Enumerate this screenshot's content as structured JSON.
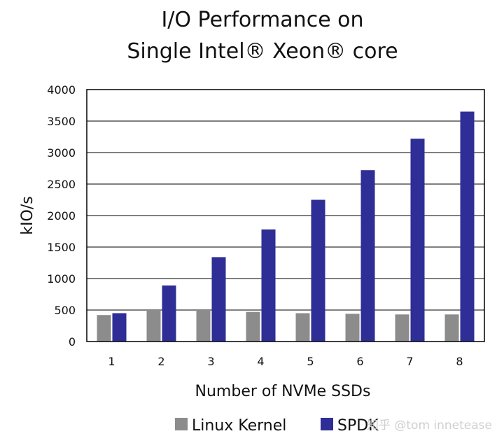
{
  "chart_data": {
    "type": "bar",
    "title": [
      "I/O Performance on",
      "Single Intel® Xeon® core"
    ],
    "xlabel": "Number of NVMe SSDs",
    "ylabel": "kIO/s",
    "categories": [
      "1",
      "2",
      "3",
      "4",
      "5",
      "6",
      "7",
      "8"
    ],
    "series": [
      {
        "name": "Linux Kernel",
        "color": "#8c8c8c",
        "values": [
          420,
          500,
          500,
          470,
          450,
          440,
          430,
          430
        ]
      },
      {
        "name": "SPDK",
        "color": "#2e2e96",
        "values": [
          450,
          890,
          1340,
          1780,
          2250,
          2720,
          3220,
          3650
        ]
      }
    ],
    "ylim": [
      0,
      4000
    ],
    "yticks": [
      0,
      500,
      1000,
      1500,
      2000,
      2500,
      3000,
      3500,
      4000
    ],
    "grid": true,
    "legend_position": "bottom"
  },
  "watermark": "知乎 @tom innetease"
}
